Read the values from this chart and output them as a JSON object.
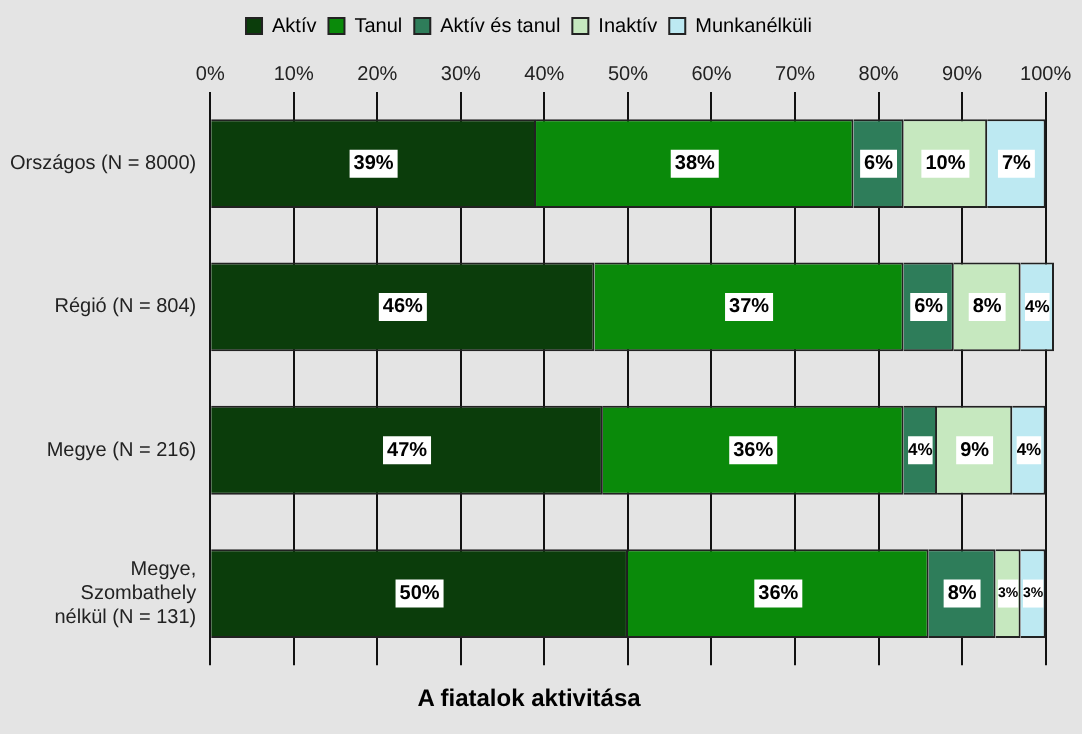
{
  "chart_data": {
    "type": "bar",
    "orientation": "horizontal",
    "stacked": true,
    "title": "A fiatalok aktivitása",
    "categories": [
      "Országos (N = 8000)",
      "Régió (N = 804)",
      "Megye (N = 216)",
      "Megye, Szombathely nélkül (N = 131)"
    ],
    "series": [
      {
        "name": "Aktív",
        "color": "#0b3d0b",
        "values": [
          39,
          46,
          47,
          50
        ],
        "value_labels": [
          "39%",
          "46%",
          "47%",
          "50%"
        ]
      },
      {
        "name": "Tanul",
        "color": "#0a8a0a",
        "values": [
          38,
          37,
          36,
          36
        ],
        "value_labels": [
          "38%",
          "37%",
          "36%",
          "36%"
        ]
      },
      {
        "name": "Aktív és tanul",
        "color": "#2e7d5a",
        "values": [
          6,
          6,
          4,
          8
        ],
        "value_labels": [
          "6%",
          "6%",
          "4%",
          "8%"
        ]
      },
      {
        "name": "Inaktív",
        "color": "#c6e8bf",
        "values": [
          10,
          8,
          9,
          3
        ],
        "value_labels": [
          "10%",
          "8%",
          "9%",
          "3%"
        ]
      },
      {
        "name": "Munkanélküli",
        "color": "#bde9f2",
        "values": [
          7,
          4,
          4,
          3
        ],
        "value_labels": [
          "7%",
          "4%",
          "4%",
          "3%"
        ]
      }
    ],
    "xlim": [
      0,
      101
    ],
    "xticks": [
      {
        "value": 0,
        "label": "0%"
      },
      {
        "value": 10,
        "label": "10%"
      },
      {
        "value": 20,
        "label": "20%"
      },
      {
        "value": 30,
        "label": "30%"
      },
      {
        "value": 40,
        "label": "40%"
      },
      {
        "value": 50,
        "label": "50%"
      },
      {
        "value": 60,
        "label": "60%"
      },
      {
        "value": 70,
        "label": "70%"
      },
      {
        "value": 80,
        "label": "80%"
      },
      {
        "value": 90,
        "label": "90%"
      },
      {
        "value": 100,
        "label": "100%"
      }
    ],
    "grid": "x",
    "legend": "top"
  }
}
